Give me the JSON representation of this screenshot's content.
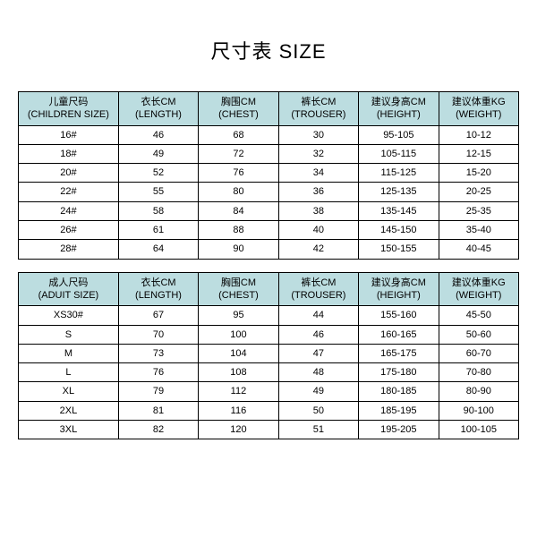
{
  "title": "尺寸表 SIZE",
  "colors": {
    "header_bg": "#bcdde0",
    "border": "#000000",
    "text": "#000000",
    "background": "#ffffff"
  },
  "children_table": {
    "headers": [
      {
        "cn": "儿童尺码",
        "en": "(CHILDREN SIZE)"
      },
      {
        "cn": "衣长CM",
        "en": "(LENGTH)"
      },
      {
        "cn": "胸围CM",
        "en": "(CHEST)"
      },
      {
        "cn": "裤长CM",
        "en": "(TROUSER)"
      },
      {
        "cn": "建议身高CM",
        "en": "(HEIGHT)"
      },
      {
        "cn": "建议体重KG",
        "en": "(WEIGHT)"
      }
    ],
    "rows": [
      [
        "16#",
        "46",
        "68",
        "30",
        "95-105",
        "10-12"
      ],
      [
        "18#",
        "49",
        "72",
        "32",
        "105-115",
        "12-15"
      ],
      [
        "20#",
        "52",
        "76",
        "34",
        "115-125",
        "15-20"
      ],
      [
        "22#",
        "55",
        "80",
        "36",
        "125-135",
        "20-25"
      ],
      [
        "24#",
        "58",
        "84",
        "38",
        "135-145",
        "25-35"
      ],
      [
        "26#",
        "61",
        "88",
        "40",
        "145-150",
        "35-40"
      ],
      [
        "28#",
        "64",
        "90",
        "42",
        "150-155",
        "40-45"
      ]
    ]
  },
  "adult_table": {
    "headers": [
      {
        "cn": "成人尺码",
        "en": "(ADUIT SIZE)"
      },
      {
        "cn": "衣长CM",
        "en": "(LENGTH)"
      },
      {
        "cn": "胸围CM",
        "en": "(CHEST)"
      },
      {
        "cn": "裤长CM",
        "en": "(TROUSER)"
      },
      {
        "cn": "建议身高CM",
        "en": "(HEIGHT)"
      },
      {
        "cn": "建议体重KG",
        "en": "(WEIGHT)"
      }
    ],
    "rows": [
      [
        "XS30#",
        "67",
        "95",
        "44",
        "155-160",
        "45-50"
      ],
      [
        "S",
        "70",
        "100",
        "46",
        "160-165",
        "50-60"
      ],
      [
        "M",
        "73",
        "104",
        "47",
        "165-175",
        "60-70"
      ],
      [
        "L",
        "76",
        "108",
        "48",
        "175-180",
        "70-80"
      ],
      [
        "XL",
        "79",
        "112",
        "49",
        "180-185",
        "80-90"
      ],
      [
        "2XL",
        "81",
        "116",
        "50",
        "185-195",
        "90-100"
      ],
      [
        "3XL",
        "82",
        "120",
        "51",
        "195-205",
        "100-105"
      ]
    ]
  }
}
